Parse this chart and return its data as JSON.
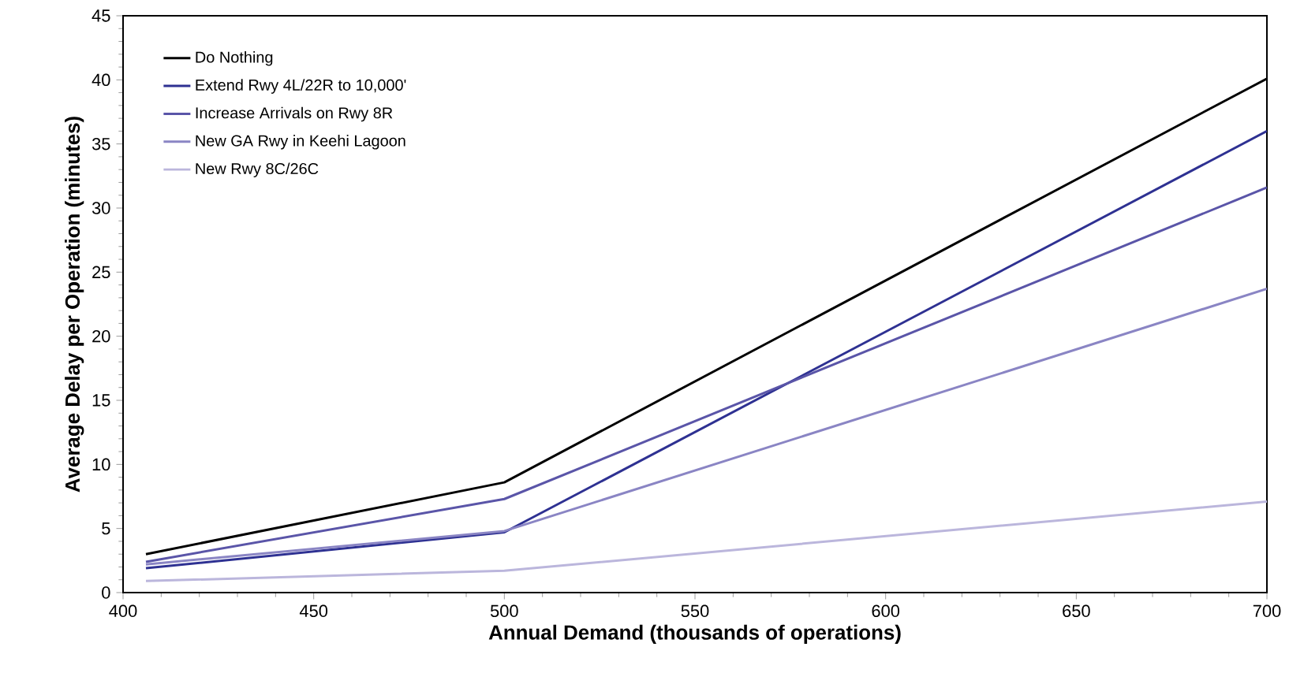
{
  "chart_data": {
    "type": "line",
    "xlabel": "Annual Demand (thousands of operations)",
    "ylabel": "Average Delay per Operation (minutes)",
    "x": [
      406,
      500,
      700
    ],
    "series": [
      {
        "name": "Do Nothing",
        "color": "#000000",
        "values": [
          3.0,
          8.6,
          40.1
        ]
      },
      {
        "name": "Extend Rwy 4L/22R to 10,000'",
        "color": "#2e3192",
        "values": [
          1.9,
          4.7,
          36.0
        ]
      },
      {
        "name": "Increase Arrivals on Rwy 8R",
        "color": "#5a55a8",
        "values": [
          2.4,
          7.3,
          31.6
        ]
      },
      {
        "name": "New GA Rwy in Keehi Lagoon",
        "color": "#8a85c4",
        "values": [
          2.2,
          4.8,
          23.7
        ]
      },
      {
        "name": "New Rwy 8C/26C",
        "color": "#bbb6dc",
        "values": [
          0.9,
          1.7,
          7.1
        ]
      }
    ],
    "xlim": [
      400,
      700
    ],
    "ylim": [
      0,
      45
    ],
    "xticks": [
      400,
      450,
      500,
      550,
      600,
      650,
      700
    ],
    "yticks": [
      0,
      5,
      10,
      15,
      20,
      25,
      30,
      35,
      40,
      45
    ],
    "legend": "top left",
    "grid": false,
    "marker": "none",
    "line_style": "solid"
  }
}
